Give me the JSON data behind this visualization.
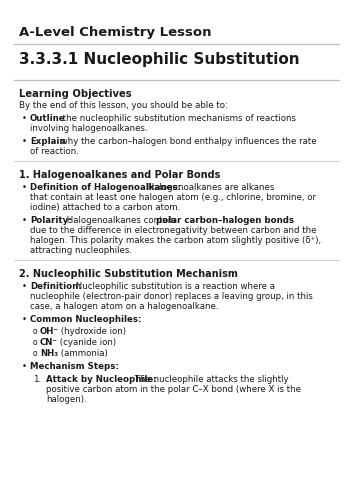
{
  "bg_color": "#ffffff",
  "text_color": "#1a1a1a",
  "header_title": "A-Level Chemistry Lesson",
  "section_title": "3.3.3.1 Nucleophilic Substitution",
  "lo_header": "Learning Objectives",
  "lo_intro": "By the end of this lesson, you should be able to:",
  "section1_title": "1. Halogenoalkanes and Polar Bonds",
  "section2_title": "2. Nucleophilic Substitution Mechanism"
}
